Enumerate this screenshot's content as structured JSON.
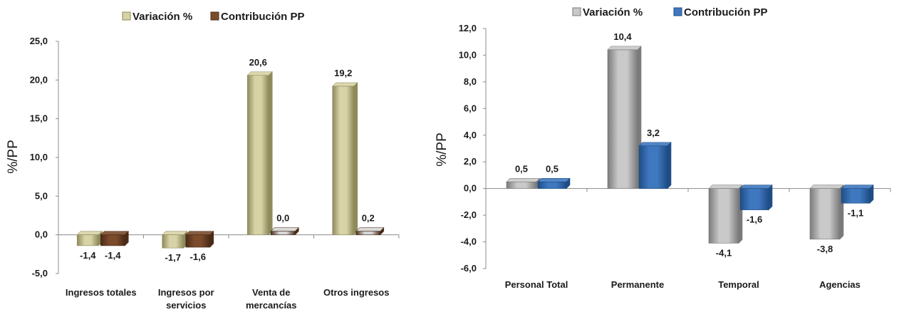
{
  "chart_data": [
    {
      "type": "bar",
      "ylabel": "%/PP",
      "ylim": [
        -5,
        25
      ],
      "ytick_values": [
        -5,
        0,
        5,
        10,
        15,
        20,
        25
      ],
      "ytick_labels": [
        "-5,0",
        "0,0",
        "5,0",
        "10,0",
        "15,0",
        "20,0",
        "25,0"
      ],
      "categories": [
        [
          "Ingresos totales"
        ],
        [
          "Ingresos por",
          "servicios"
        ],
        [
          "Venta de",
          "mercancías"
        ],
        [
          "Otros ingresos"
        ]
      ],
      "series": [
        {
          "name": "Variación %",
          "values": [
            -1.4,
            -1.7,
            20.6,
            19.2
          ],
          "labels": [
            "-1,4",
            "-1,7",
            "20,6",
            "19,2"
          ],
          "color": "#d8d3a6",
          "dark": "#8e8a5c"
        },
        {
          "name": "Contribución PP",
          "values": [
            -1.4,
            -1.6,
            0.0,
            0.2
          ],
          "labels": [
            "-1,4",
            "-1,6",
            "0,0",
            "0,2"
          ],
          "color": "#7b4b2c",
          "dark": "#4a2b17",
          "overrides": [
            "",
            "",
            "#d6d6d6",
            "#d6d6d6"
          ]
        }
      ],
      "legend": "top",
      "grid": false
    },
    {
      "type": "bar",
      "ylabel": "%/PP",
      "ylim": [
        -6,
        12
      ],
      "ytick_values": [
        -6,
        -4,
        -2,
        0,
        2,
        4,
        6,
        8,
        10,
        12
      ],
      "ytick_labels": [
        "-6,0",
        "-4,0",
        "-2,0",
        "0,0",
        "2,0",
        "4,0",
        "6,0",
        "8,0",
        "10,0",
        "12,0"
      ],
      "categories": [
        [
          "Personal Total"
        ],
        [
          "Permanente"
        ],
        [
          "Temporal"
        ],
        [
          "Agencias"
        ]
      ],
      "series": [
        {
          "name": "Variación %",
          "values": [
            0.5,
            10.4,
            -4.1,
            -3.8
          ],
          "labels": [
            "0,5",
            "10,4",
            "-4,1",
            "-3,8"
          ],
          "color": "#c9c9c9",
          "dark": "#7a7a7a"
        },
        {
          "name": "Contribución PP",
          "values": [
            0.5,
            3.2,
            -1.6,
            -1.1
          ],
          "labels": [
            "0,5",
            "3,2",
            "-1,6",
            "-1,1"
          ],
          "color": "#3f78bf",
          "dark": "#1f4d85"
        }
      ],
      "legend": "top",
      "grid": false
    }
  ]
}
